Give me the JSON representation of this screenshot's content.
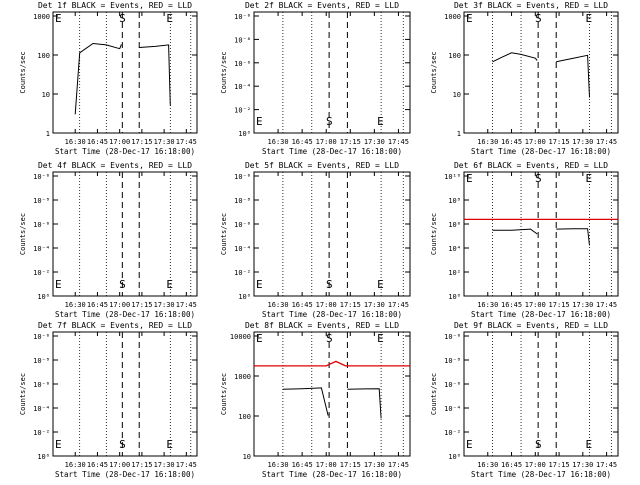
{
  "xlabel": "Start Time (28-Dec-17 16:18:00)",
  "ylabel": "Counts/sec",
  "x_tick_labels": [
    "16:30",
    "16:45",
    "17:00",
    "17:15",
    "17:30",
    "17:45"
  ],
  "marker_labels": {
    "E": "E",
    "S": "S"
  },
  "colors": {
    "events": "#000000",
    "lld": "#e00000"
  },
  "chart_data": [
    {
      "type": "line",
      "title": "Det 1f BLACK = Events, RED = LLD",
      "y_tick_labels": [
        "1",
        "10",
        "100",
        "1000"
      ],
      "y_scale": "log",
      "ylim": [
        1,
        1200
      ],
      "series": [
        {
          "name": "Events",
          "color": "#000000",
          "points": [
            [
              16.5,
              3
            ],
            [
              16.55,
              110
            ],
            [
              16.7,
              190
            ],
            [
              16.85,
              175
            ],
            [
              17.0,
              140
            ],
            [
              17.02,
              180
            ],
            [
              17.07,
              null
            ],
            [
              17.22,
              150
            ],
            [
              17.4,
              160
            ],
            [
              17.55,
              175
            ],
            [
              17.57,
              5
            ]
          ]
        }
      ]
    },
    {
      "type": "line",
      "title": "Det 2f BLACK = Events, RED = LLD",
      "y_tick_labels": [
        "10⁰",
        "10⁻²",
        "10⁻⁴",
        "10⁻⁶",
        "10⁻⁸",
        "10⁻⁶"
      ],
      "y_scale": "log",
      "series": []
    },
    {
      "type": "line",
      "title": "Det 3f BLACK = Events, RED = LLD",
      "y_tick_labels": [
        "1",
        "10",
        "100",
        "1000"
      ],
      "y_scale": "log",
      "ylim": [
        1,
        1200
      ],
      "series": [
        {
          "name": "Events",
          "color": "#000000",
          "points": [
            [
              16.55,
              65
            ],
            [
              16.65,
              85
            ],
            [
              16.75,
              110
            ],
            [
              16.85,
              100
            ],
            [
              17.0,
              80
            ],
            [
              17.02,
              70
            ],
            [
              17.07,
              null
            ],
            [
              17.22,
              65
            ],
            [
              17.4,
              80
            ],
            [
              17.55,
              95
            ],
            [
              17.57,
              8
            ]
          ]
        }
      ]
    },
    {
      "type": "line",
      "title": "Det 4f BLACK = Events, RED = LLD",
      "y_tick_labels": [
        "10⁰",
        "10⁻²",
        "10⁻⁴",
        "10⁻⁶",
        "10⁻⁸",
        "10⁻⁶"
      ],
      "y_scale": "log",
      "series": []
    },
    {
      "type": "line",
      "title": "Det 5f BLACK = Events, RED = LLD",
      "y_tick_labels": [
        "10⁰",
        "10⁻²",
        "10⁻⁴",
        "10⁻⁶",
        "10⁻⁸",
        "10⁻⁶"
      ],
      "y_scale": "log",
      "series": []
    },
    {
      "type": "line",
      "title": "Det 6f BLACK = Events, RED = LLD",
      "y_tick_labels": [
        "10⁰",
        "10²",
        "10⁴",
        "10⁶",
        "10⁸",
        "10¹⁰"
      ],
      "y_scale": "log",
      "ylim": [
        1,
        10000000000.0
      ],
      "series": [
        {
          "name": "Events",
          "color": "#000000",
          "points": [
            [
              16.55,
              200000.0
            ],
            [
              16.75,
              200000.0
            ],
            [
              16.95,
              250000.0
            ],
            [
              17.02,
              100000
            ],
            [
              17.07,
              null
            ],
            [
              17.22,
              250000.0
            ],
            [
              17.4,
              270000.0
            ],
            [
              17.55,
              270000.0
            ],
            [
              17.57,
              12000.0
            ]
          ]
        },
        {
          "name": "LLD",
          "color": "#e00000",
          "points": [
            [
              16.25,
              1500000.0
            ],
            [
              17.87,
              1500000.0
            ]
          ]
        }
      ]
    },
    {
      "type": "line",
      "title": "Det 7f BLACK = Events, RED = LLD",
      "y_tick_labels": [
        "10⁰",
        "10⁻²",
        "10⁻⁴",
        "10⁻⁶",
        "10⁻⁸",
        "10⁻⁶"
      ],
      "y_scale": "log",
      "series": []
    },
    {
      "type": "line",
      "title": "Det 8f BLACK = Events, RED = LLD",
      "y_tick_labels": [
        "10",
        "100",
        "1000",
        "10000"
      ],
      "y_scale": "log",
      "ylim": [
        10,
        20000
      ],
      "series": [
        {
          "name": "Events",
          "color": "#000000",
          "points": [
            [
              16.55,
              600
            ],
            [
              16.75,
              620
            ],
            [
              16.95,
              650
            ],
            [
              17.02,
              120
            ],
            [
              17.07,
              null
            ],
            [
              17.22,
              600
            ],
            [
              17.4,
              610
            ],
            [
              17.55,
              620
            ],
            [
              17.57,
              100
            ]
          ]
        },
        {
          "name": "LLD",
          "color": "#e00000",
          "points": [
            [
              16.25,
              2500
            ],
            [
              17.0,
              2500
            ],
            [
              17.1,
              3300
            ],
            [
              17.2,
              2500
            ],
            [
              17.87,
              2500
            ]
          ]
        }
      ]
    },
    {
      "type": "line",
      "title": "Det 9f BLACK = Events, RED = LLD",
      "y_tick_labels": [
        "10⁰",
        "10⁻²",
        "10⁻⁴",
        "10⁻⁶",
        "10⁻⁸",
        "10⁻⁶"
      ],
      "y_scale": "log",
      "series": []
    }
  ]
}
